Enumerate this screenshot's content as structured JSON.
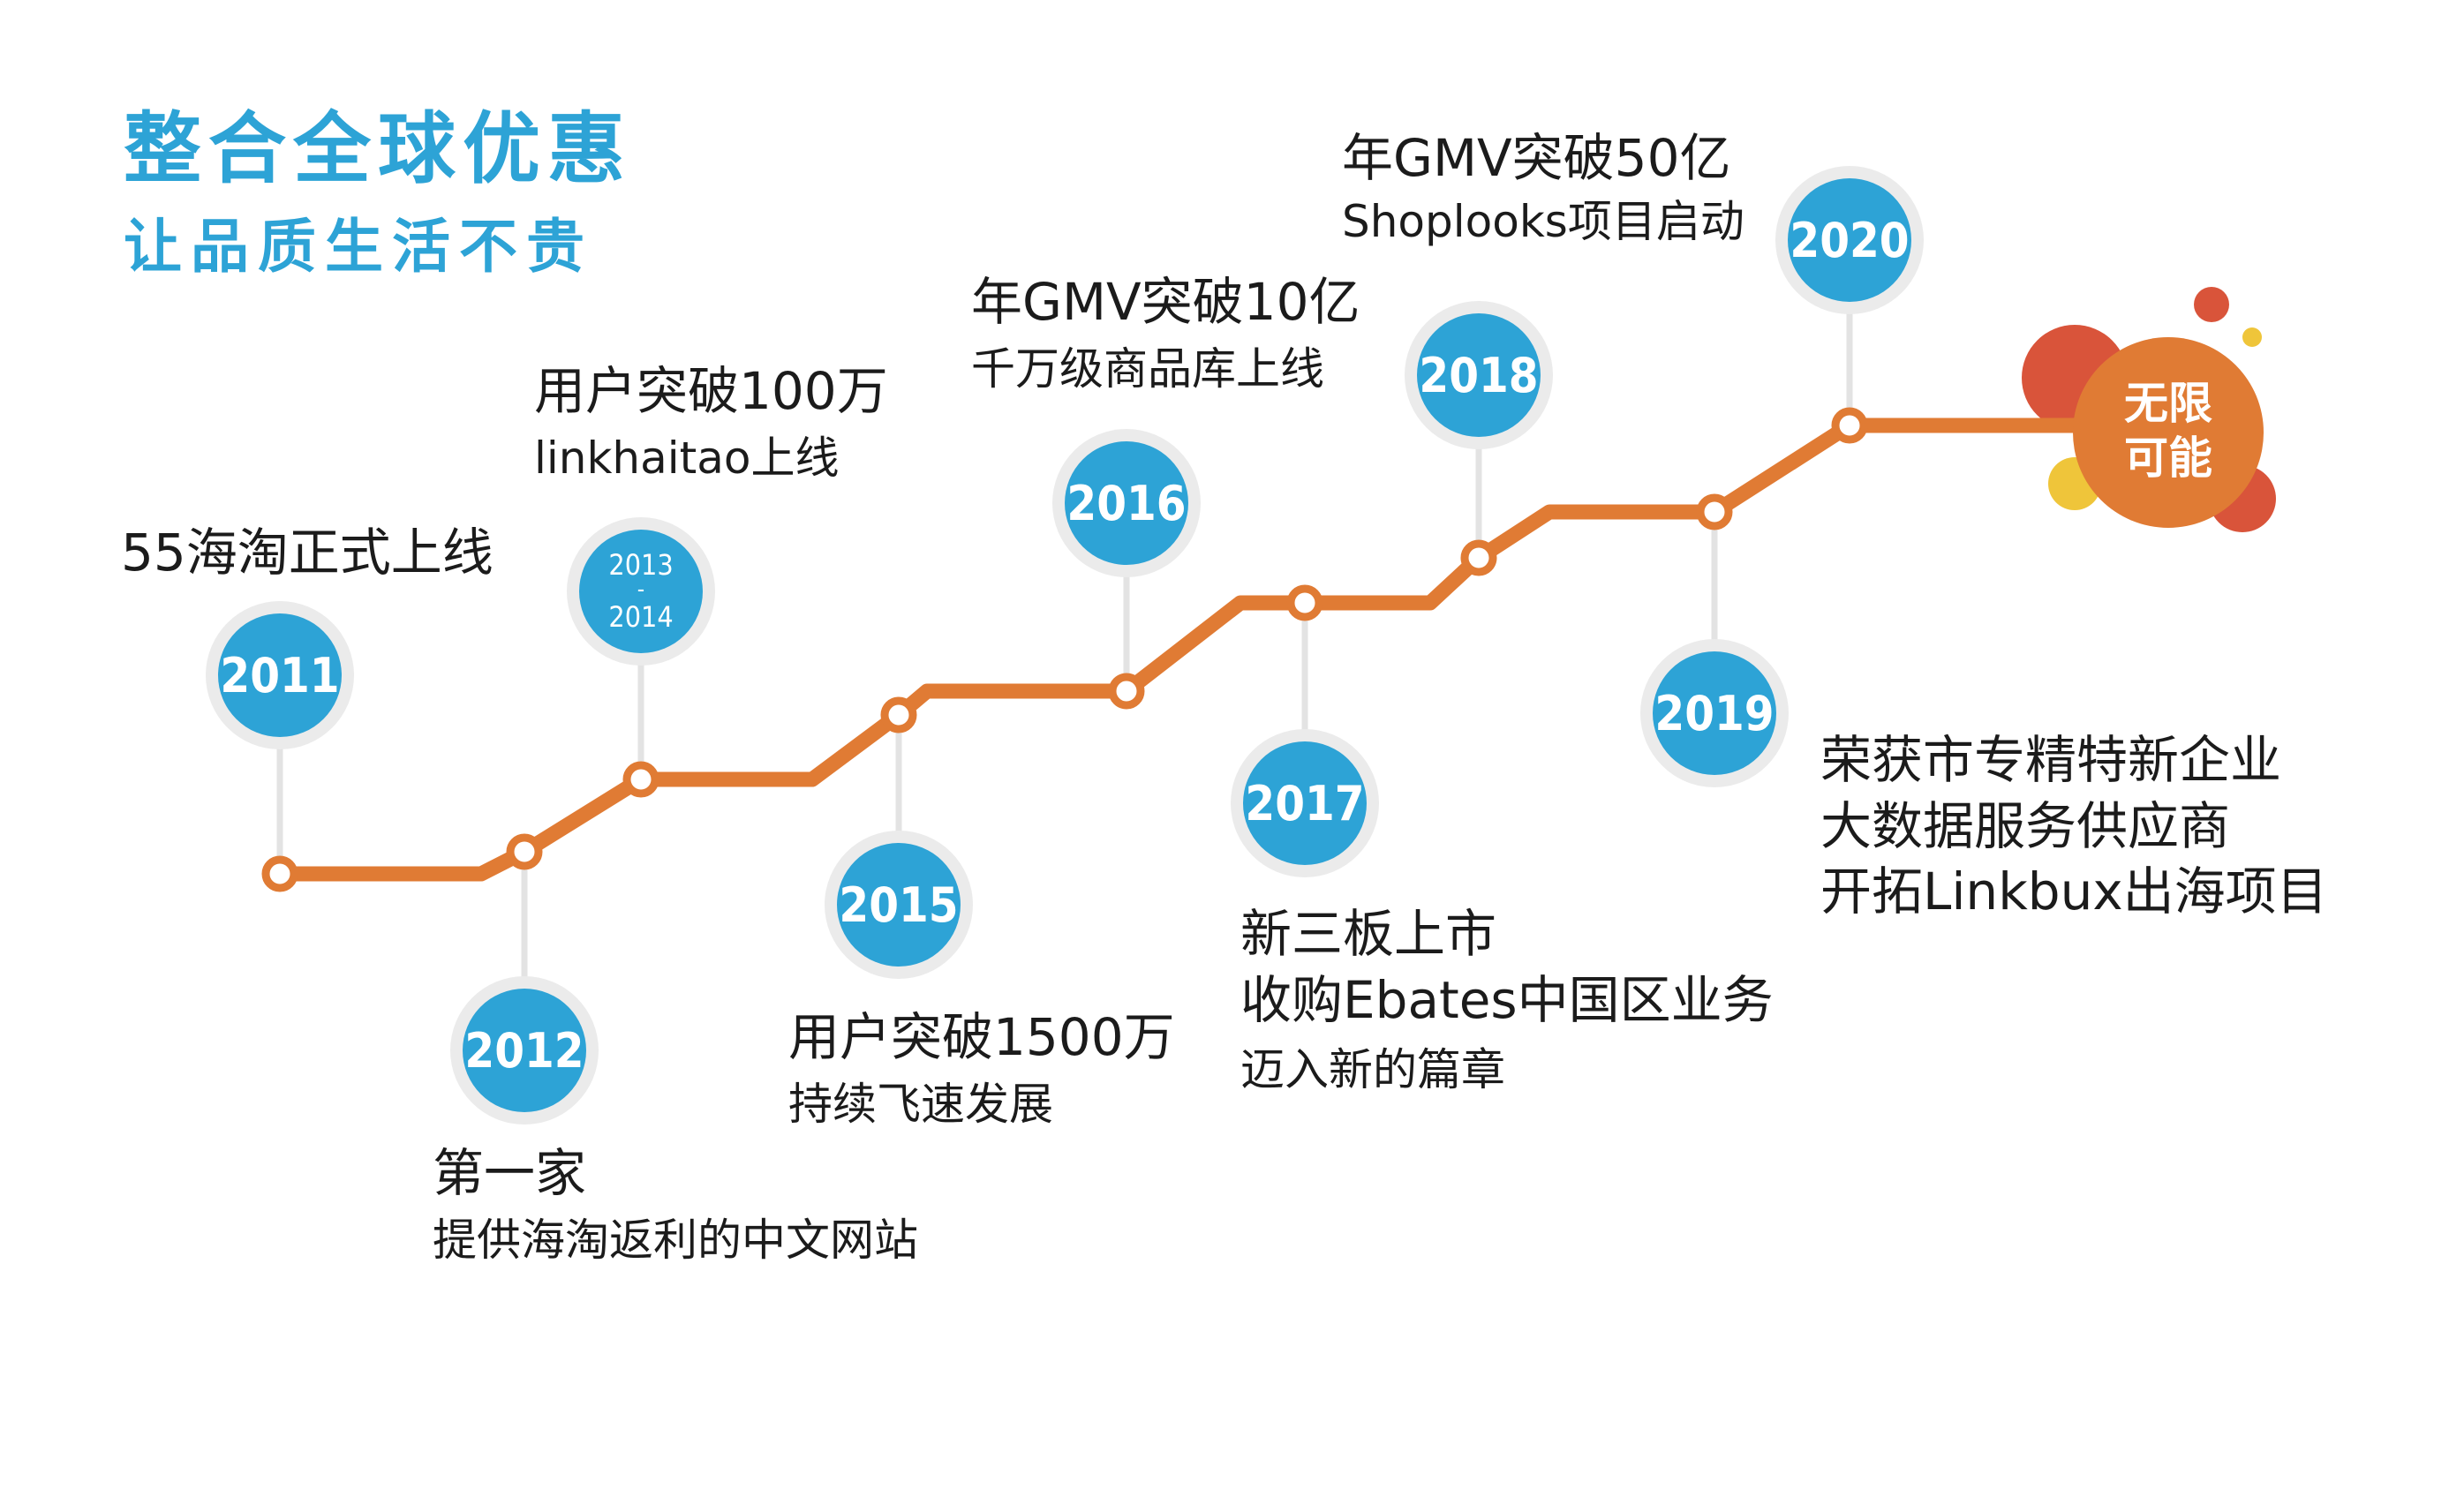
{
  "header": {
    "title": "整合全球优惠",
    "subtitle": "让品质生活不贵"
  },
  "colors": {
    "accent_blue": "#2da3d6",
    "line_orange": "#e07b34",
    "halo_grey": "#ebebeb",
    "bubble_red": "#d9543a",
    "bubble_yellow": "#efc53a",
    "text_dark": "#1b1b1b"
  },
  "milestones": [
    {
      "year": "2011",
      "headline": "55海淘正式上线",
      "detail": ""
    },
    {
      "year": "2012",
      "headline": "第一家",
      "detail": "提供海淘返利的中文网站"
    },
    {
      "year_top": "2013",
      "year_sep": "-",
      "year_bottom": "2014",
      "headline": "用户突破100万",
      "detail": "linkhaitao上线"
    },
    {
      "year": "2015",
      "headline": "用户突破1500万",
      "detail": "持续飞速发展"
    },
    {
      "year": "2016",
      "headline": "年GMV突破10亿",
      "detail": "千万级商品库上线"
    },
    {
      "year": "2017",
      "headline_1": "新三板上市",
      "headline_2": "收购Ebates中国区业务",
      "detail": "迈入新的篇章"
    },
    {
      "year": "2018",
      "headline": "年GMV突破50亿",
      "detail": "Shoplooks项目启动"
    },
    {
      "year": "2019",
      "line_1": "荣获市专精特新企业",
      "line_2": "大数据服务供应商",
      "line_3": "开拓Linkbux出海项目"
    },
    {
      "year": "2020"
    }
  ],
  "endpoint": {
    "line_1": "无限",
    "line_2": "可能"
  }
}
